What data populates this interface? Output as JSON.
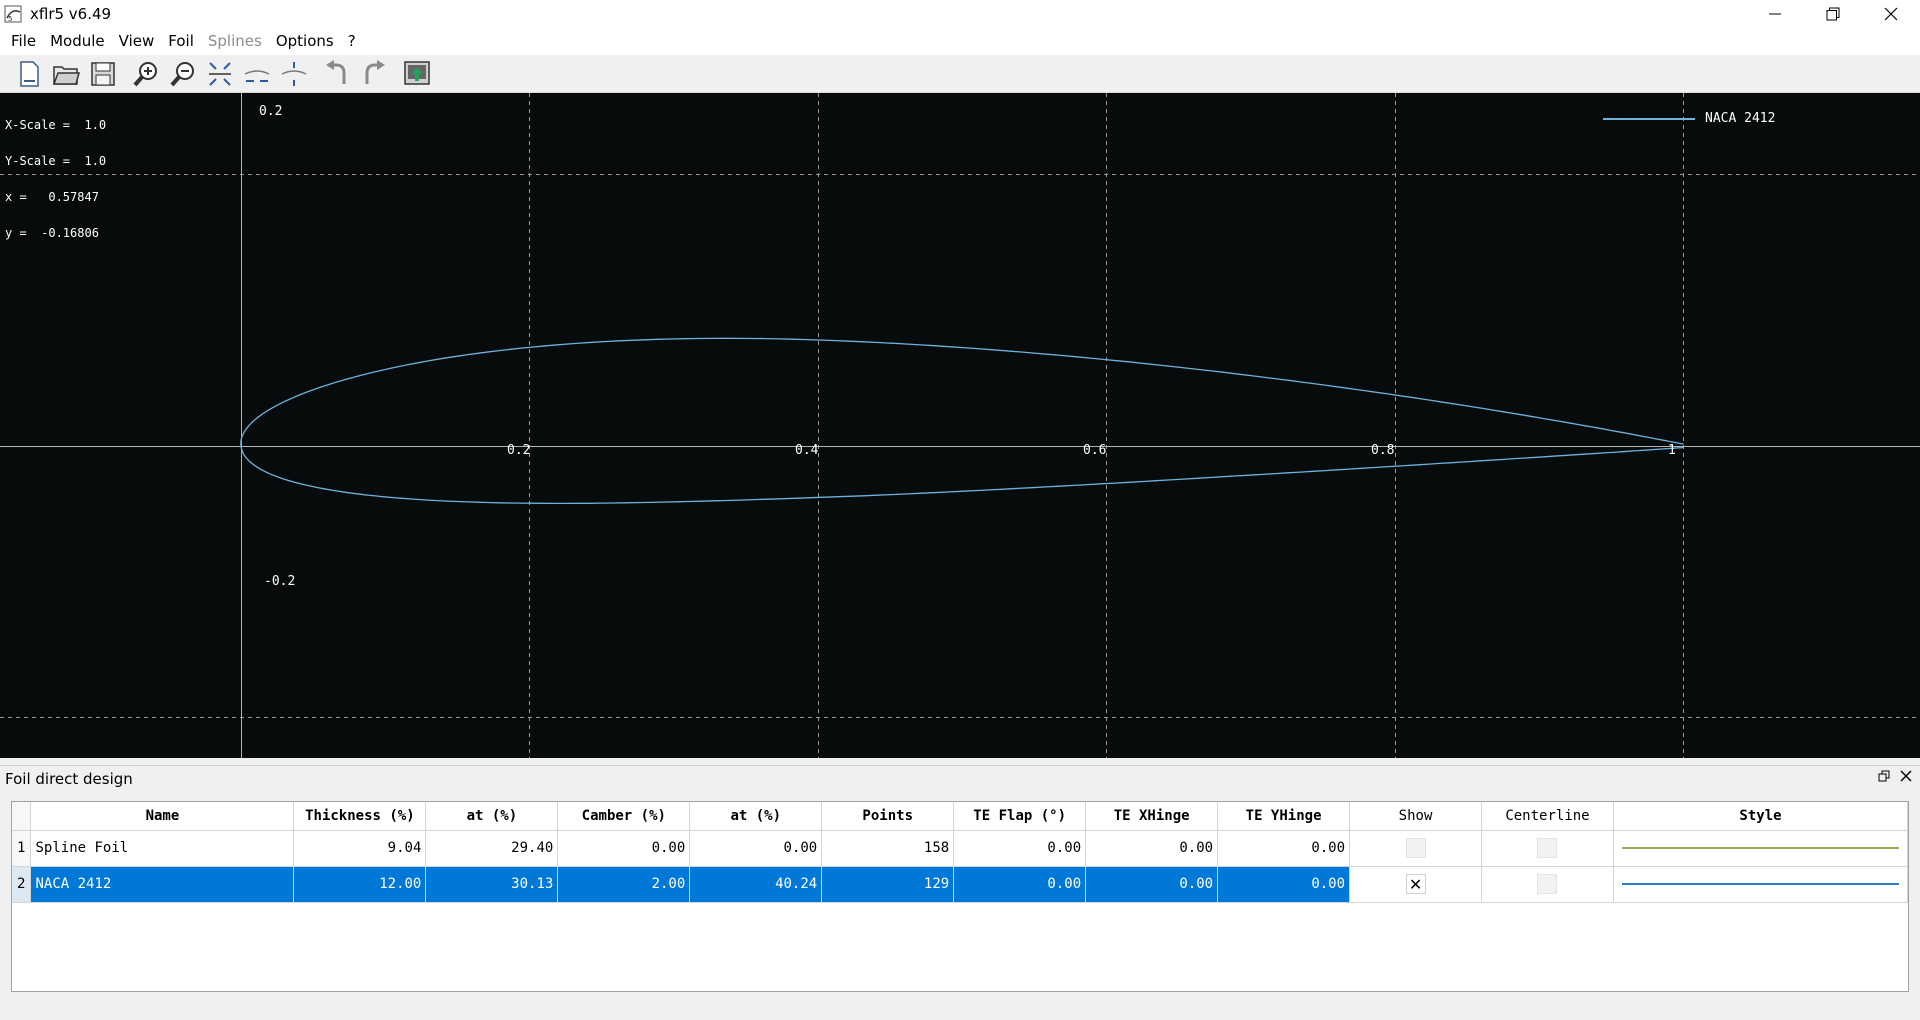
{
  "window": {
    "title": "xflr5 v6.49"
  },
  "menu": {
    "items": [
      {
        "label": "File",
        "enabled": true
      },
      {
        "label": "Module",
        "enabled": true
      },
      {
        "label": "View",
        "enabled": true
      },
      {
        "label": "Foil",
        "enabled": true
      },
      {
        "label": "Splines",
        "enabled": false
      },
      {
        "label": "Options",
        "enabled": true
      },
      {
        "label": "?",
        "enabled": true
      }
    ]
  },
  "toolbar": {
    "buttons": [
      "new-file-icon",
      "open-folder-icon",
      "save-icon",
      "zoom-in-icon",
      "zoom-less-icon",
      "reset-scales-icon",
      "reset-x-scale-icon",
      "reset-y-scale-icon",
      "undo-icon",
      "redo-icon",
      "export-icon"
    ]
  },
  "graph": {
    "readout": {
      "x_scale": "X-Scale =  1.0",
      "y_scale": "Y-Scale =  1.0",
      "x": "x =   0.57847",
      "y": "y =  -0.16806"
    },
    "legend": "NACA 2412",
    "x_ticks": [
      "0.2",
      "0.4",
      "0.6",
      "0.8",
      "1"
    ],
    "y_ticks": [
      "0.2",
      "-0.2"
    ],
    "colors": {
      "background": "#070b0b",
      "foil": "#6fb2dc",
      "axis": "#b4b4b4",
      "grid": "#9a9a9a"
    }
  },
  "chart_data": {
    "type": "line",
    "series": [
      {
        "name": "NACA 2412",
        "airfoil": {
          "max_camber": 0.02,
          "camber_position": 0.4,
          "thickness": 0.12
        }
      }
    ],
    "xlim": [
      -0.167,
      1.164
    ],
    "ylim": [
      -0.23,
      0.26
    ],
    "grid": true,
    "legend_position": "top-right"
  },
  "dock": {
    "title": "Foil direct design"
  },
  "table": {
    "columns": [
      "Name",
      "Thickness (%)",
      "at (%)",
      "Camber (%)",
      "at (%)",
      "Points",
      "TE Flap (°)",
      "TE XHinge",
      "TE YHinge",
      "Show",
      "Centerline",
      "Style"
    ],
    "rows": [
      {
        "index": "1",
        "name": "Spline Foil",
        "thickness": "9.04",
        "thickness_at": "29.40",
        "camber": "0.00",
        "camber_at": "0.00",
        "points": "158",
        "te_flap": "0.00",
        "te_xhinge": "0.00",
        "te_yhinge": "0.00",
        "show": "",
        "centerline": "",
        "style_color": "#9aa859",
        "selected": false
      },
      {
        "index": "2",
        "name": "NACA 2412",
        "thickness": "12.00",
        "thickness_at": "30.13",
        "camber": "2.00",
        "camber_at": "40.24",
        "points": "129",
        "te_flap": "0.00",
        "te_xhinge": "0.00",
        "te_yhinge": "0.00",
        "show": "✕",
        "centerline": "",
        "style_color": "#2b7cc0",
        "selected": true
      }
    ]
  }
}
